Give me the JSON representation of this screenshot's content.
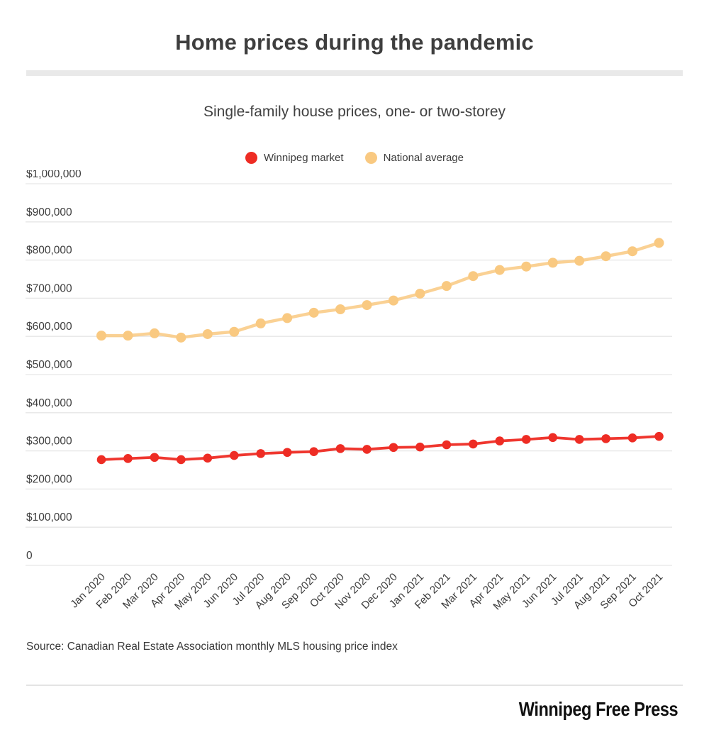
{
  "header": {
    "title": "Home prices during the pandemic",
    "subtitle": "Single-family house prices, one- or two-storey"
  },
  "legend": [
    {
      "label": "Winnipeg market",
      "color": "#ee2c24"
    },
    {
      "label": "National average",
      "color": "#f9c981"
    }
  ],
  "chart_data": {
    "type": "line",
    "title": "Home prices during the pandemic",
    "subtitle": "Single-family house prices, one- or two-storey",
    "categories": [
      "Jan 2020",
      "Feb 2020",
      "Mar 2020",
      "Apr 2020",
      "May 2020",
      "Jun 2020",
      "Jul 2020",
      "Aug 2020",
      "Sep 2020",
      "Oct 2020",
      "Nov 2020",
      "Dec 2020",
      "Jan 2021",
      "Feb 2021",
      "Mar 2021",
      "Apr 2021",
      "May 2021",
      "Jun 2021",
      "Jul 2021",
      "Aug 2021",
      "Sep 2021",
      "Oct 2021"
    ],
    "series": [
      {
        "name": "Winnipeg market",
        "color": "#ee2c24",
        "values": [
          277000,
          280000,
          283000,
          277000,
          281000,
          288000,
          293000,
          296000,
          298000,
          306000,
          304000,
          309000,
          310000,
          316000,
          318000,
          326000,
          330000,
          335000,
          330000,
          332000,
          334000,
          338000
        ]
      },
      {
        "name": "National average",
        "color": "#f9c981",
        "values": [
          602000,
          602000,
          608000,
          597000,
          606000,
          612000,
          634000,
          648000,
          662000,
          671000,
          682000,
          694000,
          712000,
          732000,
          758000,
          774000,
          783000,
          793000,
          798000,
          810000,
          823000,
          845000
        ]
      }
    ],
    "ylim": [
      0,
      1000000
    ],
    "ytick_step": 100000,
    "ytick_labels": [
      "0",
      "$100,000",
      "$200,000",
      "$300,000",
      "$400,000",
      "$500,000",
      "$600,000",
      "$700,000",
      "$800,000",
      "$900,000",
      "$1,000,000"
    ],
    "grid": true,
    "legend_position": "top",
    "xlabel": "",
    "ylabel": ""
  },
  "footer": {
    "source": "Source: Canadian Real Estate Association monthly MLS housing price index",
    "logo": "Winnipeg Free Press"
  }
}
